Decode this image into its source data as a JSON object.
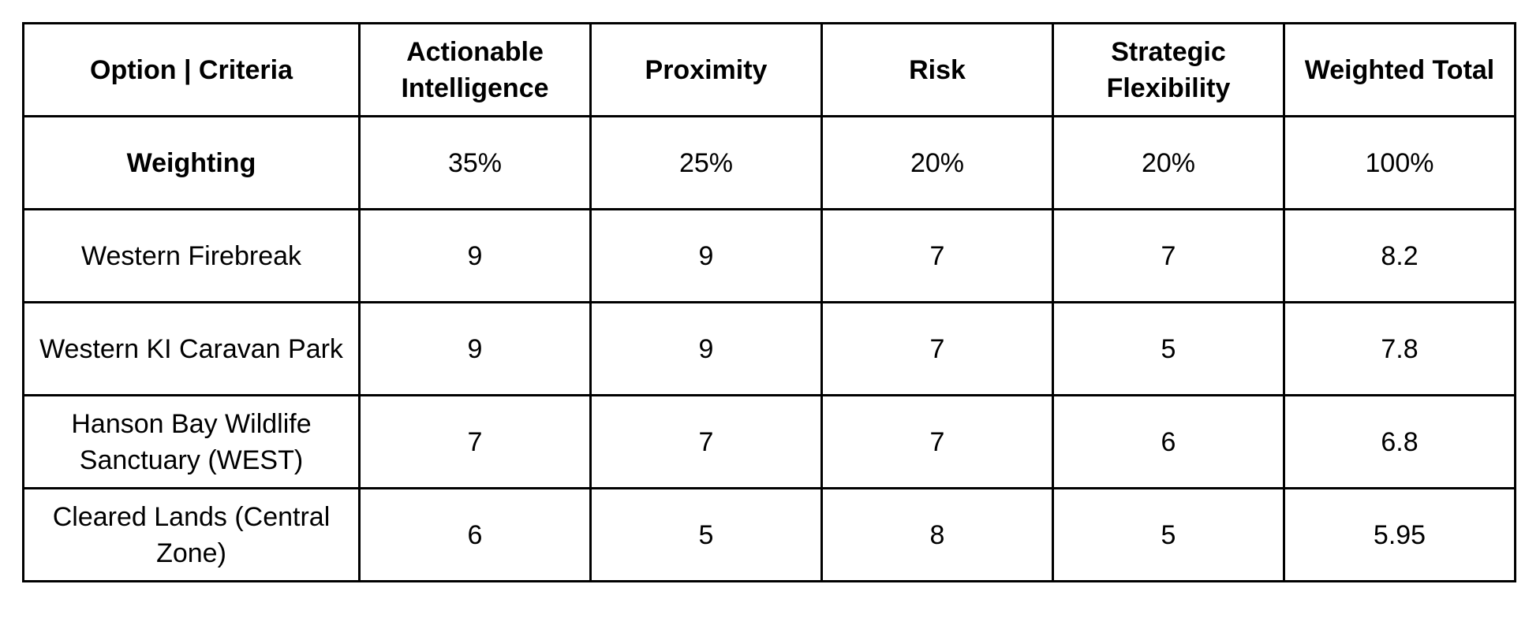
{
  "table": {
    "headers": [
      "Option | Criteria",
      "Actionable Intelligence",
      "Proximity",
      "Risk",
      "Strategic Flexibility",
      "Weighted Total"
    ],
    "weighting_row": {
      "label": "Weighting",
      "values": [
        "35%",
        "25%",
        "20%",
        "20%",
        "100%"
      ]
    },
    "rows": [
      {
        "option": "Western Firebreak",
        "values": [
          "9",
          "9",
          "7",
          "7",
          "8.2"
        ]
      },
      {
        "option": "Western KI Caravan Park",
        "values": [
          "9",
          "9",
          "7",
          "5",
          "7.8"
        ]
      },
      {
        "option": "Hanson Bay Wildlife Sanctuary (WEST)",
        "values": [
          "7",
          "7",
          "7",
          "6",
          "6.8"
        ]
      },
      {
        "option": "Cleared Lands (Central Zone)",
        "values": [
          "6",
          "5",
          "8",
          "5",
          "5.95"
        ]
      }
    ]
  }
}
